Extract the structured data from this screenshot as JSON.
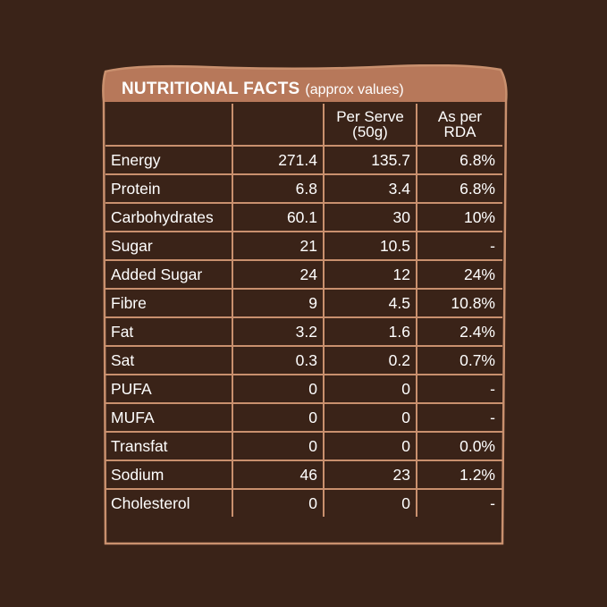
{
  "colors": {
    "background": "#3a2318",
    "header_band": "#b7785a",
    "border": "#c9906e",
    "text": "#ffffff"
  },
  "title": {
    "main": "NUTRITIONAL FACTS",
    "sub": "(approx values)"
  },
  "columns": [
    "",
    "",
    "Per Serve (50g)",
    "As per RDA"
  ],
  "rows": [
    {
      "nutrient": "Energy",
      "per100": "271.4",
      "per_serve": "135.7",
      "rda": "6.8%"
    },
    {
      "nutrient": "Protein",
      "per100": "6.8",
      "per_serve": "3.4",
      "rda": "6.8%"
    },
    {
      "nutrient": "Carbohydrates",
      "per100": "60.1",
      "per_serve": "30",
      "rda": "10%"
    },
    {
      "nutrient": "Sugar",
      "per100": "21",
      "per_serve": "10.5",
      "rda": "-"
    },
    {
      "nutrient": "Added Sugar",
      "per100": "24",
      "per_serve": "12",
      "rda": "24%"
    },
    {
      "nutrient": "Fibre",
      "per100": "9",
      "per_serve": "4.5",
      "rda": "10.8%"
    },
    {
      "nutrient": "Fat",
      "per100": "3.2",
      "per_serve": "1.6",
      "rda": "2.4%"
    },
    {
      "nutrient": "Sat",
      "per100": "0.3",
      "per_serve": "0.2",
      "rda": "0.7%"
    },
    {
      "nutrient": "PUFA",
      "per100": "0",
      "per_serve": "0",
      "rda": "-"
    },
    {
      "nutrient": "MUFA",
      "per100": "0",
      "per_serve": "0",
      "rda": "-"
    },
    {
      "nutrient": "Transfat",
      "per100": "0",
      "per_serve": "0",
      "rda": "0.0%"
    },
    {
      "nutrient": "Sodium",
      "per100": "46",
      "per_serve": "23",
      "rda": "1.2%"
    },
    {
      "nutrient": "Cholesterol",
      "per100": "0",
      "per_serve": "0",
      "rda": "-"
    }
  ]
}
